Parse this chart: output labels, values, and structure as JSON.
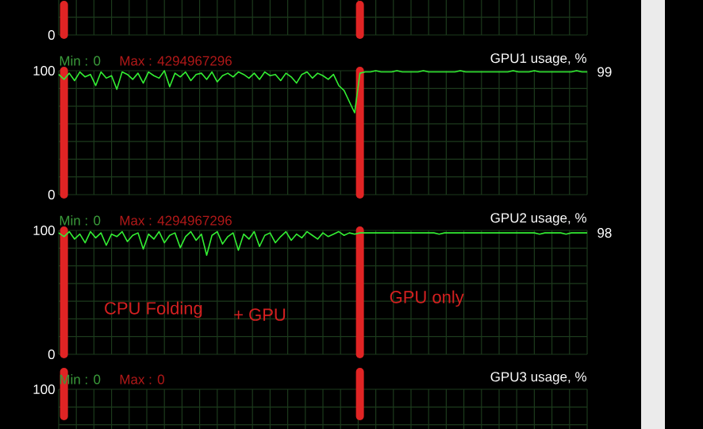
{
  "chart_data": [
    {
      "type": "other",
      "annotations": [
        "0"
      ]
    },
    {
      "type": "line",
      "ylim": [
        0,
        100
      ],
      "yticks": [
        0,
        100
      ],
      "tick_labels": "y",
      "grid": true,
      "categories": [
        null,
        null,
        null,
        null,
        null,
        null,
        null,
        null,
        null,
        null,
        null,
        null,
        null,
        null,
        null,
        null,
        null,
        null,
        null,
        null,
        null,
        null,
        null,
        null,
        null,
        null,
        null,
        null,
        null,
        null,
        null,
        null,
        null,
        null,
        null,
        null,
        null,
        null,
        null,
        null,
        null,
        null,
        null,
        null,
        null,
        null,
        null,
        null,
        null,
        null,
        null,
        null,
        null,
        null,
        null,
        null,
        null,
        null,
        null,
        null,
        null,
        null,
        null,
        null,
        null,
        null,
        null,
        null,
        null,
        null,
        null,
        null,
        null,
        null,
        null,
        null,
        null,
        null,
        null,
        null,
        null,
        null,
        null,
        null,
        null,
        null,
        null,
        null,
        null,
        null,
        null,
        null,
        null,
        null,
        null,
        null,
        null,
        null,
        null,
        null,
        null
      ],
      "series": [
        {
          "name": "GPU1 usage, %",
          "color": "#33ee33",
          "values": [
            97,
            93,
            98,
            92,
            99,
            95,
            97,
            88,
            99,
            94,
            96,
            85,
            99,
            97,
            93,
            98,
            90,
            99,
            96,
            94,
            100,
            87,
            98,
            95,
            99,
            92,
            97,
            98,
            93,
            99,
            91,
            96,
            98,
            95,
            99,
            97,
            94,
            98,
            93,
            99,
            96,
            97,
            92,
            98,
            95,
            90,
            97,
            99,
            94,
            98,
            96,
            93,
            97,
            88,
            84,
            75,
            66,
            98,
            99,
            99,
            100,
            99,
            99,
            99,
            100,
            99,
            99,
            99,
            99,
            100,
            99,
            99,
            99,
            99,
            99,
            99,
            100,
            99,
            99,
            99,
            99,
            99,
            99,
            99,
            99,
            99,
            100,
            99,
            99,
            99,
            100,
            99,
            99,
            99,
            99,
            99,
            99,
            99,
            100,
            99,
            99
          ]
        }
      ],
      "annotations": [
        "Min : 0",
        "Max : 4294967296",
        "99"
      ]
    },
    {
      "type": "line",
      "ylim": [
        0,
        100
      ],
      "yticks": [
        0,
        100
      ],
      "tick_labels": "y",
      "grid": true,
      "categories": [
        null,
        null,
        null,
        null,
        null,
        null,
        null,
        null,
        null,
        null,
        null,
        null,
        null,
        null,
        null,
        null,
        null,
        null,
        null,
        null,
        null,
        null,
        null,
        null,
        null,
        null,
        null,
        null,
        null,
        null,
        null,
        null,
        null,
        null,
        null,
        null,
        null,
        null,
        null,
        null,
        null,
        null,
        null,
        null,
        null,
        null,
        null,
        null,
        null,
        null,
        null,
        null,
        null,
        null,
        null,
        null,
        null,
        null,
        null,
        null,
        null,
        null,
        null,
        null,
        null,
        null,
        null,
        null,
        null,
        null,
        null,
        null,
        null,
        null,
        null,
        null,
        null,
        null,
        null,
        null,
        null,
        null,
        null,
        null,
        null,
        null,
        null,
        null,
        null,
        null,
        null,
        null,
        null,
        null,
        null,
        null,
        null,
        null,
        null,
        null,
        null
      ],
      "series": [
        {
          "name": "GPU2 usage, %",
          "color": "#33ee33",
          "values": [
            98,
            95,
            99,
            93,
            97,
            90,
            99,
            94,
            98,
            88,
            97,
            95,
            99,
            91,
            96,
            98,
            85,
            97,
            93,
            99,
            90,
            96,
            98,
            86,
            95,
            99,
            92,
            97,
            80,
            96,
            99,
            89,
            95,
            98,
            84,
            97,
            93,
            99,
            87,
            96,
            98,
            90,
            95,
            99,
            92,
            97,
            94,
            99,
            96,
            93,
            98,
            95,
            97,
            99,
            96,
            98,
            97,
            98,
            98,
            98,
            98,
            98,
            98,
            98,
            98,
            98,
            98,
            98,
            98,
            98,
            98,
            98,
            97,
            98,
            98,
            98,
            98,
            98,
            98,
            98,
            98,
            98,
            98,
            98,
            98,
            98,
            98,
            98,
            98,
            98,
            98,
            97,
            98,
            98,
            98,
            98,
            97,
            98,
            98,
            98,
            98
          ]
        }
      ],
      "annotations": [
        "Min : 0",
        "Max : 4294967296",
        "98",
        "CPU Folding",
        "+ GPU",
        "GPU only"
      ]
    },
    {
      "type": "other",
      "annotations": [
        "100",
        "Min : 0",
        "Max : 0",
        "GPU3 usage, %"
      ]
    }
  ]
}
